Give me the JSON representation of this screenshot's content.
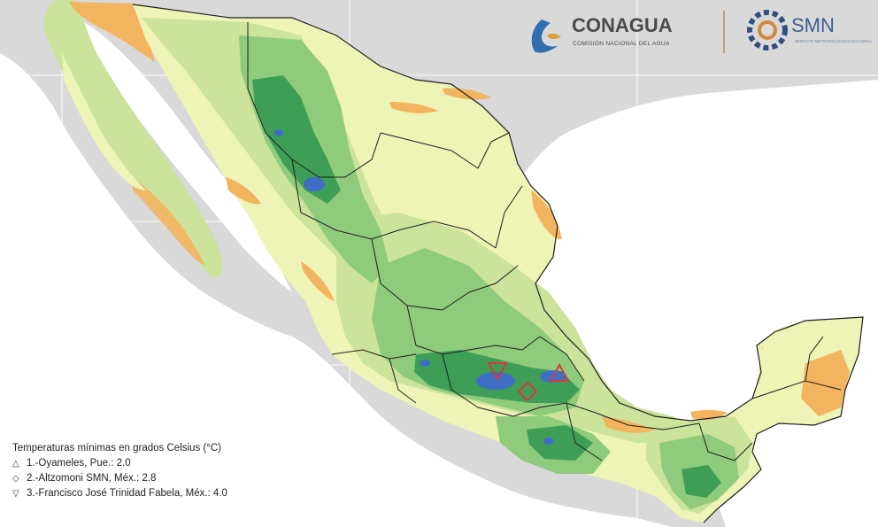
{
  "logos": {
    "conagua_title": "CONAGUA",
    "conagua_subtitle": "COMISIÓN NACIONAL DEL AGUA",
    "smn_title": "SMN",
    "smn_subtitle": "SERVICIO METEOROLÓGICO NACIONAL"
  },
  "legend": {
    "title": "Temperaturas mínimas en grados Celsius (°C)",
    "items": [
      {
        "symbol": "△",
        "text": "1.-Oyameles, Pue.: 2.0"
      },
      {
        "symbol": "◇",
        "text": "2.-Altzomoni SMN, Méx.: 2.8"
      },
      {
        "symbol": "▽",
        "text": "3.-Francisco José Trinidad Fabela, Méx.: 4.0"
      }
    ]
  },
  "colors": {
    "background": "#d9d9d9",
    "ocean": "#ffffff",
    "land_pale": "#eef3b6",
    "land_light_green": "#cbe39b",
    "land_green": "#8fcb7c",
    "land_dark_green": "#3f9e55",
    "land_blue": "#3f6fc4",
    "land_orange": "#f3b460",
    "station_marker": "#d63a3a",
    "conagua_text": "#4a4a4a",
    "smn_text": "#3a5f93"
  }
}
